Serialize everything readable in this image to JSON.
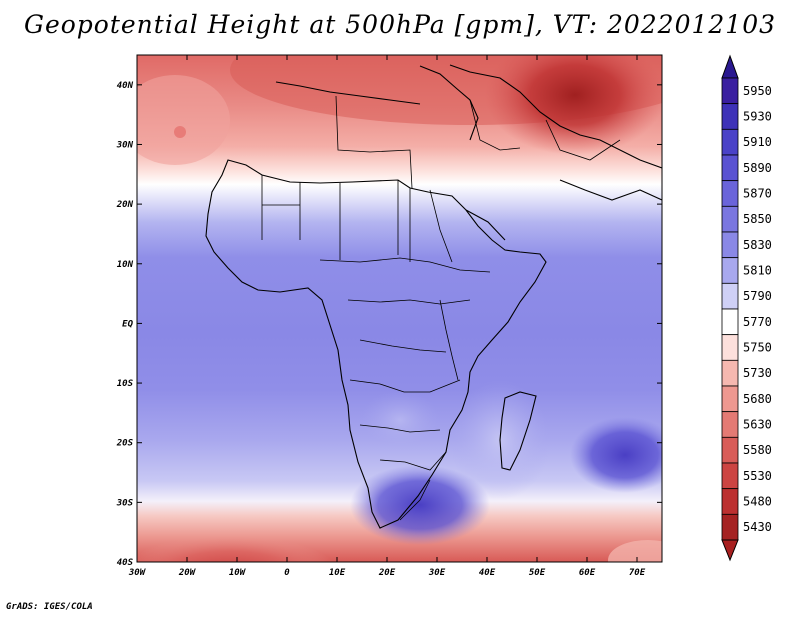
{
  "title": "Geopotential Height at 500hPa [gpm], VT: 2022012103",
  "footer": "GrADS: IGES/COLA",
  "map": {
    "projection": "lat-lon",
    "lon_range": [
      -30,
      75
    ],
    "lat_range": [
      -40,
      45
    ],
    "lon_ticks": [
      {
        "value": -30,
        "label": "30W"
      },
      {
        "value": -20,
        "label": "20W"
      },
      {
        "value": -10,
        "label": "10W"
      },
      {
        "value": 0,
        "label": "0"
      },
      {
        "value": 10,
        "label": "10E"
      },
      {
        "value": 20,
        "label": "20E"
      },
      {
        "value": 30,
        "label": "30E"
      },
      {
        "value": 40,
        "label": "40E"
      },
      {
        "value": 50,
        "label": "50E"
      },
      {
        "value": 60,
        "label": "60E"
      },
      {
        "value": 70,
        "label": "70E"
      }
    ],
    "lat_ticks": [
      {
        "value": 40,
        "label": "40N"
      },
      {
        "value": 30,
        "label": "30N"
      },
      {
        "value": 20,
        "label": "20N"
      },
      {
        "value": 10,
        "label": "10N"
      },
      {
        "value": 0,
        "label": "EQ"
      },
      {
        "value": -10,
        "label": "10S"
      },
      {
        "value": -20,
        "label": "20S"
      },
      {
        "value": -30,
        "label": "30S"
      },
      {
        "value": -40,
        "label": "40S"
      }
    ]
  },
  "colorbar": {
    "levels": [
      {
        "label": "5950",
        "color": "#3a1fa0"
      },
      {
        "label": "5930",
        "color": "#3e32b8"
      },
      {
        "label": "5910",
        "color": "#4a42c8"
      },
      {
        "label": "5890",
        "color": "#5a52d2"
      },
      {
        "label": "5870",
        "color": "#6a64da"
      },
      {
        "label": "5850",
        "color": "#7a76e0"
      },
      {
        "label": "5830",
        "color": "#8a88e6"
      },
      {
        "label": "5810",
        "color": "#a8a8ee"
      },
      {
        "label": "5790",
        "color": "#cfd0f6"
      },
      {
        "label": "5770",
        "color": "#ffffff"
      },
      {
        "label": "5750",
        "color": "#fde0dc"
      },
      {
        "label": "5730",
        "color": "#f6b8b0"
      },
      {
        "label": "5680",
        "color": "#ee9890"
      },
      {
        "label": "5630",
        "color": "#e47a74"
      },
      {
        "label": "5580",
        "color": "#d85c58"
      },
      {
        "label": "5530",
        "color": "#cc4442"
      },
      {
        "label": "5480",
        "color": "#bc3030"
      },
      {
        "label": "5430",
        "color": "#a52222"
      }
    ],
    "top_color": "#2a1890",
    "bottom_color": "#a82020"
  }
}
